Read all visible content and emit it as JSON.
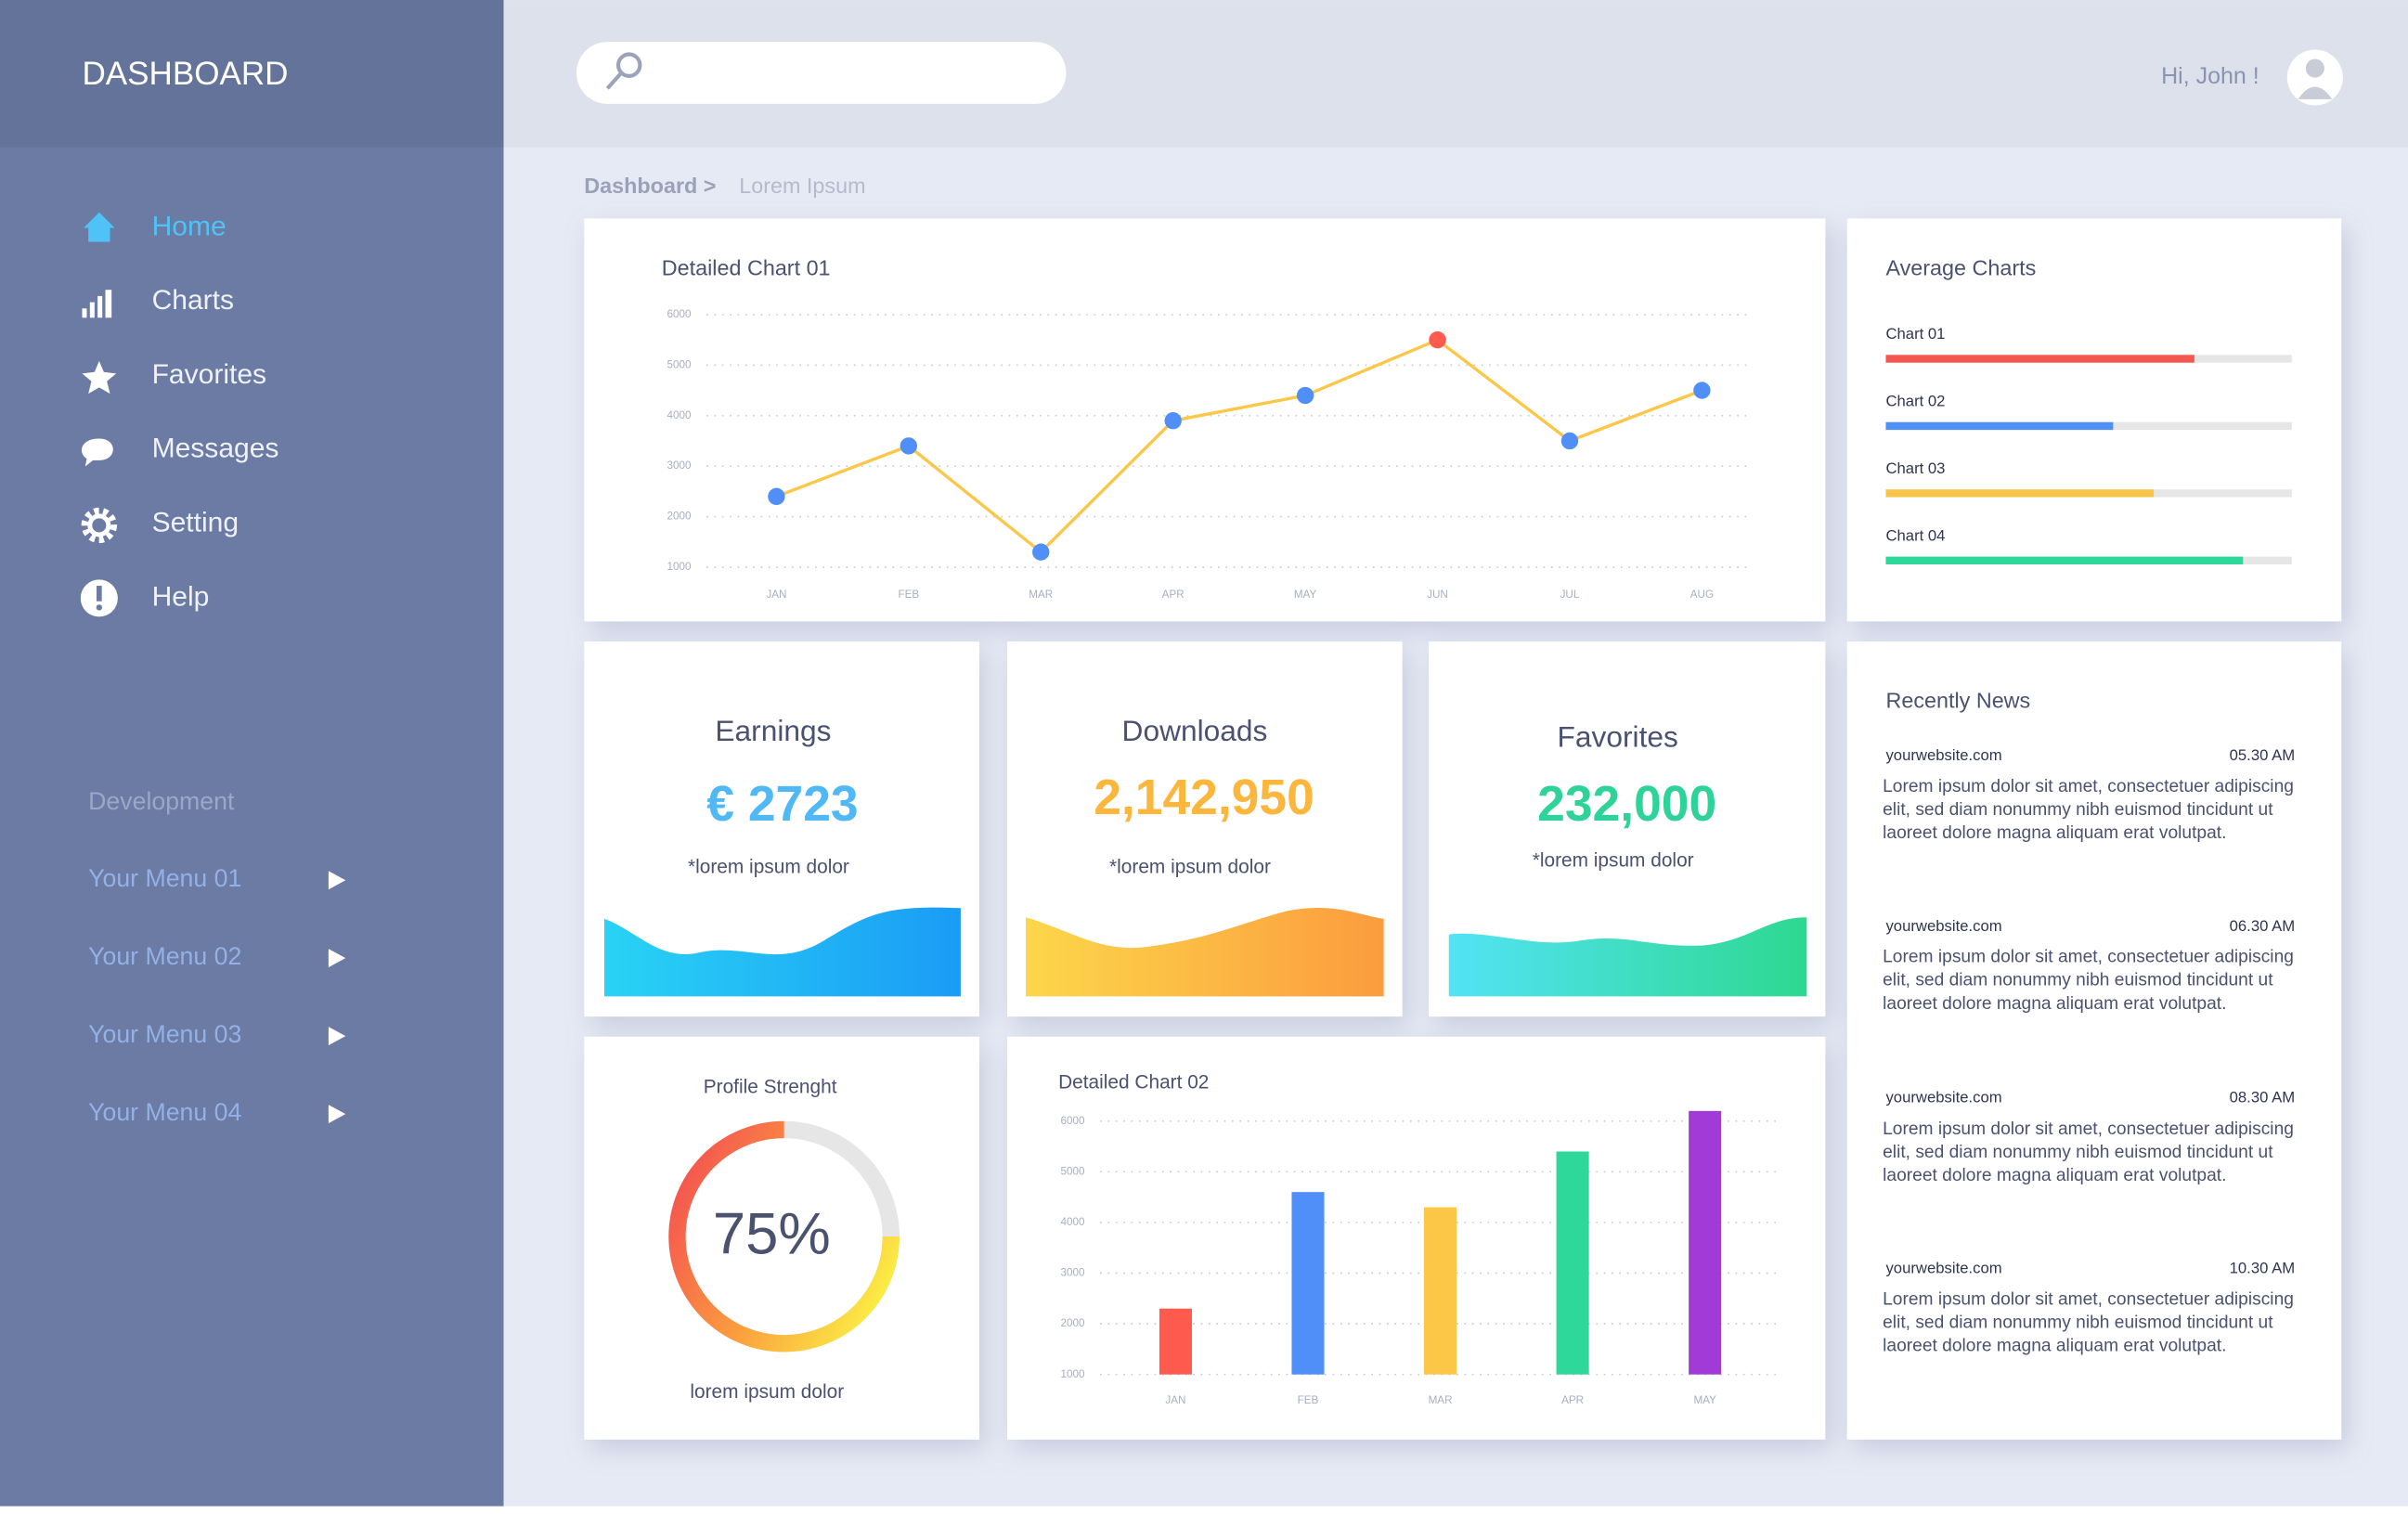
{
  "header": {
    "title": "DASHBOARD",
    "greeting": "Hi, John !"
  },
  "sidebar": {
    "menu": [
      "Home",
      "Charts",
      "Favorites",
      "Messages",
      "Setting",
      "Help"
    ],
    "section": "Development",
    "submenu": [
      "Your Menu 01",
      "Your Menu 02",
      "Your Menu 03",
      "Your Menu 04"
    ]
  },
  "breadcrumb": {
    "root": "Dashboard >",
    "current": "Lorem Ipsum"
  },
  "line_chart": {
    "type": "line",
    "title": "Detailed Chart 01",
    "categories": [
      "JAN",
      "FEB",
      "MAR",
      "APR",
      "MAY",
      "JUN",
      "JUL",
      "AUG"
    ],
    "values": [
      2400,
      3400,
      1300,
      3900,
      4400,
      5500,
      3500,
      4500
    ],
    "color": "#fcc647",
    "point_colors": [
      "#4f8ff7",
      "#4f8ff7",
      "#4f8ff7",
      "#4f8ff7",
      "#4f8ff7",
      "#ff5a4e",
      "#4f8ff7",
      "#4f8ff7"
    ],
    "ylim": [
      1000,
      6000
    ],
    "yticks": [
      1000,
      2000,
      3000,
      4000,
      5000,
      6000
    ],
    "grid": true
  },
  "average_charts": {
    "type": "bar",
    "title": "Average Charts",
    "xlim": [
      0,
      100
    ],
    "categories": [
      "Chart 01",
      "Chart 02",
      "Chart 03",
      "Chart 04"
    ],
    "values": [
      76,
      56,
      66,
      88
    ],
    "colors": [
      "#f4574f",
      "#4f8ff7",
      "#f8c54a",
      "#2ed79a"
    ]
  },
  "stats": [
    {
      "title": "Earnings",
      "value": "€ 2723",
      "note": "*lorem ipsum dolor"
    },
    {
      "title": "Downloads",
      "value": "2,142,950",
      "note": "*lorem ipsum dolor"
    },
    {
      "title": "Favorites",
      "value": "232,000",
      "note": "*lorem ipsum dolor"
    }
  ],
  "profile": {
    "type": "donut",
    "title": "Profile Strenght",
    "value": 75,
    "value_label": "75%",
    "caption": "lorem ipsum dolor"
  },
  "bar_chart": {
    "type": "bar",
    "title": "Detailed Chart 02",
    "categories": [
      "JAN",
      "FEB",
      "MAR",
      "APR",
      "MAY"
    ],
    "values": [
      2300,
      4600,
      4300,
      5400,
      6200
    ],
    "colors": [
      "#ff5a4e",
      "#4f8ff7",
      "#fcc647",
      "#2ed79a",
      "#a23ad8"
    ],
    "ylim": [
      1000,
      6300
    ],
    "yticks": [
      1000,
      2000,
      3000,
      4000,
      5000,
      6000
    ],
    "grid": true
  },
  "news": {
    "title": "Recently News",
    "items": [
      {
        "source": "yourwebsite.com",
        "time": "05.30 AM",
        "text": "Lorem ipsum dolor sit amet, consectetuer adipiscing elit, sed diam nonummy nibh euismod tincidunt ut laoreet dolore magna aliquam erat volutpat."
      },
      {
        "source": "yourwebsite.com",
        "time": "06.30 AM",
        "text": "Lorem ipsum dolor sit amet, consectetuer adipiscing elit, sed diam nonummy nibh euismod tincidunt ut laoreet dolore magna aliquam erat volutpat."
      },
      {
        "source": "yourwebsite.com",
        "time": "08.30 AM",
        "text": "Lorem ipsum dolor sit amet, consectetuer adipiscing elit, sed diam nonummy nibh euismod tincidunt ut laoreet dolore magna aliquam erat volutpat."
      },
      {
        "source": "yourwebsite.com",
        "time": "10.30 AM",
        "text": "Lorem ipsum dolor sit amet, consectetuer adipiscing elit, sed diam nonummy nibh euismod tincidunt ut laoreet dolore magna aliquam erat volutpat."
      }
    ]
  }
}
